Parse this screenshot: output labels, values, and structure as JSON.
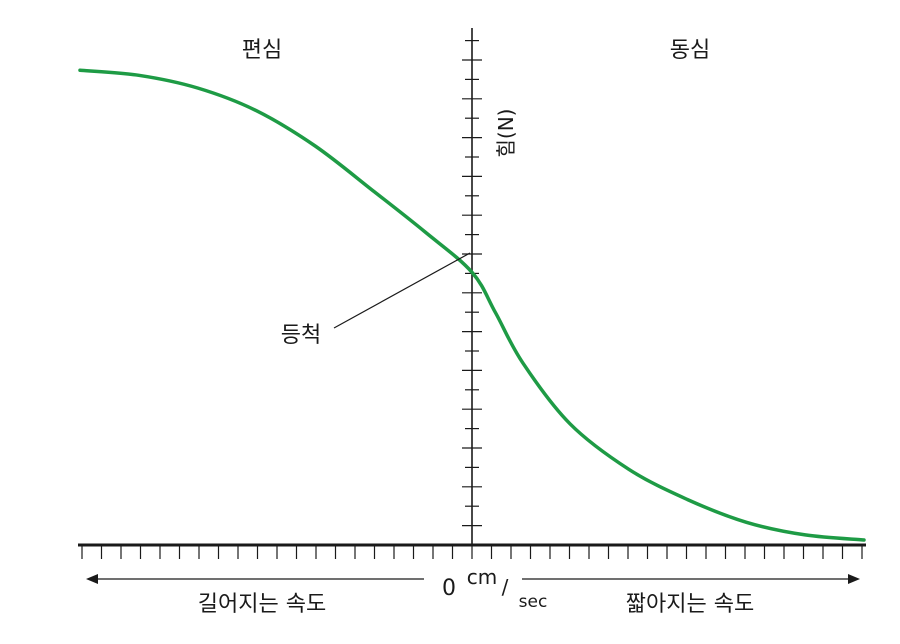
{
  "labels": {
    "eccentric": "편심",
    "concentric": "동심",
    "force_axis": "힘(N)",
    "isometric": "등척",
    "lengthening_speed": "길어지는 속도",
    "shortening_speed": "짧아지는 속도",
    "origin": "0",
    "unit_numerator": "cm",
    "unit_separator": "/",
    "unit_denominator": "sec"
  },
  "colors": {
    "curve": "#1e9b45",
    "axis": "#1a1a1a"
  },
  "curve": {
    "description_points": [
      [
        -1.0,
        0.94
      ],
      [
        -0.85,
        0.93
      ],
      [
        -0.7,
        0.905
      ],
      [
        -0.55,
        0.86
      ],
      [
        -0.4,
        0.79
      ],
      [
        -0.25,
        0.7
      ],
      [
        -0.12,
        0.62
      ],
      [
        0.0,
        0.54
      ],
      [
        0.06,
        0.46
      ],
      [
        0.13,
        0.36
      ],
      [
        0.25,
        0.24
      ],
      [
        0.4,
        0.15
      ],
      [
        0.55,
        0.09
      ],
      [
        0.7,
        0.045
      ],
      [
        0.85,
        0.02
      ],
      [
        1.0,
        0.01
      ]
    ]
  }
}
